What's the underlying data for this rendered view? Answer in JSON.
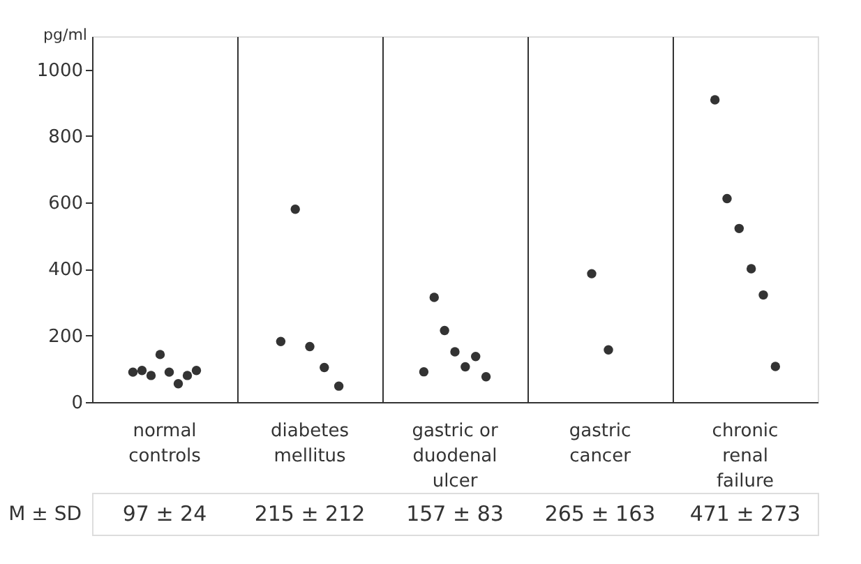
{
  "chart_data": {
    "type": "scatter",
    "ylabel": "pg/ml",
    "categories": [
      "normal controls",
      "diabetes mellitus",
      "gastric or duodenal ulcer",
      "gastric cancer",
      "chronic renal failure"
    ],
    "series": [
      {
        "color": "#333333",
        "x": [
          "normal controls",
          "normal controls",
          "normal controls",
          "normal controls",
          "normal controls",
          "normal controls",
          "normal controls",
          "normal controls"
        ],
        "values": [
          90,
          95,
          80,
          143,
          90,
          55,
          80,
          95
        ]
      },
      {
        "color": "#333333",
        "x": [
          "diabetes mellitus",
          "diabetes mellitus",
          "diabetes mellitus",
          "diabetes mellitus",
          "diabetes mellitus"
        ],
        "values": [
          182,
          580,
          167,
          104,
          48
        ]
      },
      {
        "color": "#333333",
        "x": [
          "gastric or duodenal ulcer",
          "gastric or duodenal ulcer",
          "gastric or duodenal ulcer",
          "gastric or duodenal ulcer",
          "gastric or duodenal ulcer",
          "gastric or duodenal ulcer",
          "gastric or duodenal ulcer"
        ],
        "values": [
          91,
          315,
          215,
          151,
          106,
          137,
          76
        ]
      },
      {
        "color": "#333333",
        "x": [
          "gastric cancer",
          "gastric cancer"
        ],
        "values": [
          386,
          157
        ]
      },
      {
        "color": "#333333",
        "x": [
          "chronic renal failure",
          "chronic renal failure",
          "chronic renal failure",
          "chronic renal failure",
          "chronic renal failure",
          "chronic renal failure"
        ],
        "values": [
          909,
          612,
          522,
          401,
          322,
          107
        ]
      }
    ],
    "ylim": [
      0,
      1100
    ],
    "yticks": [
      0,
      200,
      400,
      600,
      800,
      1000
    ],
    "grid": "x",
    "marker": "circle",
    "annotations": [
      "M ± SD",
      "97 ± 24",
      "215 ± 212",
      "157 ± 83",
      "265 ± 163",
      "471 ± 273"
    ]
  }
}
